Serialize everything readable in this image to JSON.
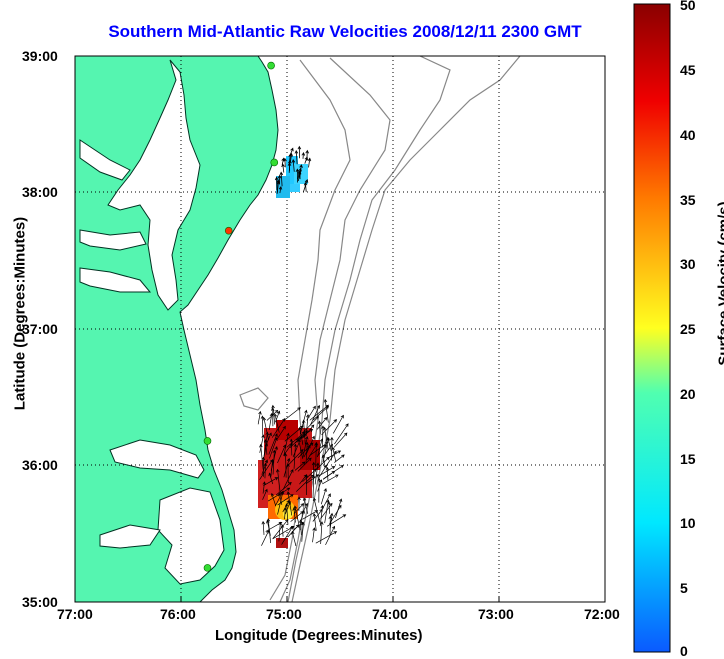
{
  "title": "Southern Mid-Atlantic Raw Velocities 2008/12/11 2300 GMT",
  "xlabel": "Longitude (Degrees:Minutes)",
  "ylabel": "Latitude (Degrees:Minutes)",
  "colorbar": {
    "label": "Surface Velocity (cm/s)",
    "min": 0,
    "max": 50,
    "ticks": [
      "0",
      "5",
      "10",
      "15",
      "20",
      "25",
      "30",
      "35",
      "40",
      "45",
      "50"
    ]
  },
  "x_ticks": [
    "77:00",
    "76:00",
    "75:00",
    "74:00",
    "73:00",
    "72:00"
  ],
  "y_ticks": [
    "39:00",
    "38:00",
    "37:00",
    "36:00",
    "35:00"
  ],
  "map": {
    "lon_range": [
      -77,
      -72
    ],
    "lat_range": [
      35,
      39
    ],
    "grid": true,
    "land_color": "#55f5b0",
    "stations": [
      {
        "lon": -75.15,
        "lat": 38.93,
        "color": "#33dd33"
      },
      {
        "lon": -75.12,
        "lat": 38.22,
        "color": "#33dd33"
      },
      {
        "lon": -75.55,
        "lat": 37.72,
        "color": "#ff3300"
      },
      {
        "lon": -75.75,
        "lat": 36.18,
        "color": "#33dd33"
      },
      {
        "lon": -75.75,
        "lat": 35.25,
        "color": "#33dd33"
      }
    ]
  }
}
